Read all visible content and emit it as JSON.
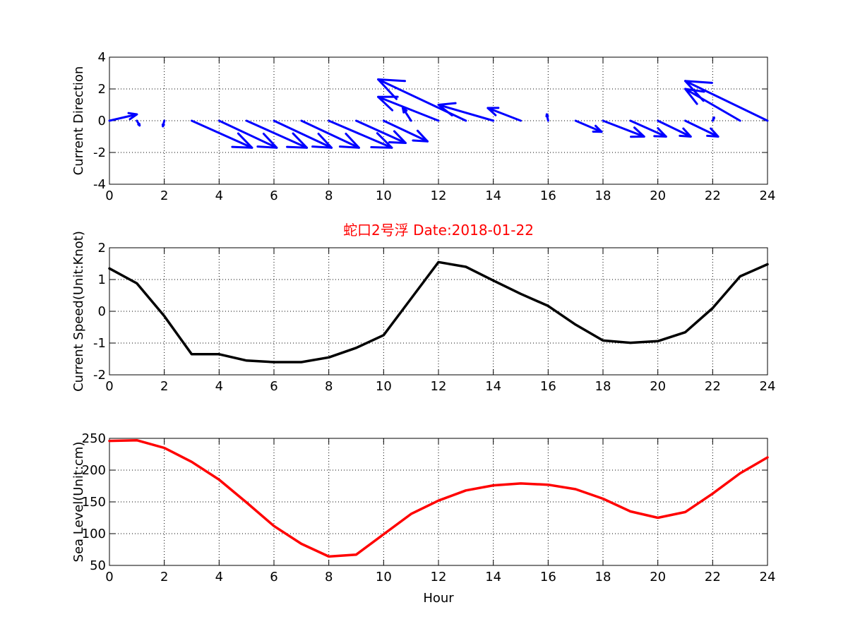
{
  "figure_title": "蛇口2号浮    Date:2018-01-22",
  "colors": {
    "direction": "#0000ff",
    "speed": "#000000",
    "sea_level": "#ff0000",
    "title": "#ff0000"
  },
  "chart_data": [
    {
      "type": "quiver",
      "ylabel": "Current Direction",
      "xlabel": "",
      "xlim": [
        0,
        24
      ],
      "ylim": [
        -4,
        4
      ],
      "xticks": [
        0,
        2,
        4,
        6,
        8,
        10,
        12,
        14,
        16,
        18,
        20,
        22,
        24
      ],
      "yticks": [
        -4,
        -2,
        0,
        2,
        4
      ],
      "grid": true,
      "series": [
        {
          "color": "#0000ff",
          "x": [
            0,
            1,
            2,
            3,
            4,
            5,
            6,
            7,
            8,
            9,
            10,
            11,
            12,
            13,
            14,
            15,
            16,
            17,
            18,
            19,
            20,
            21,
            22,
            23,
            24
          ],
          "u": [
            1.0,
            0.1,
            -0.05,
            2.2,
            2.1,
            2.2,
            2.1,
            2.1,
            2.3,
            1.8,
            1.6,
            -0.3,
            -2.2,
            -3.2,
            -2.0,
            -1.2,
            -0.05,
            0.95,
            1.5,
            1.3,
            1.2,
            1.2,
            0.05,
            -2.0,
            -3.0
          ],
          "v": [
            0.4,
            -0.3,
            -0.35,
            -1.7,
            -1.7,
            -1.7,
            -1.7,
            -1.7,
            -1.7,
            -1.4,
            -1.3,
            0.8,
            1.5,
            2.6,
            1.0,
            0.8,
            0.4,
            -0.7,
            -1.0,
            -1.0,
            -1.0,
            -1.0,
            0.2,
            2.0,
            2.5
          ]
        }
      ]
    },
    {
      "type": "line",
      "ylabel": "Current Speed(Unit:Knot)",
      "xlabel": "",
      "xlim": [
        0,
        24
      ],
      "ylim": [
        -2,
        2
      ],
      "xticks": [
        0,
        2,
        4,
        6,
        8,
        10,
        12,
        14,
        16,
        18,
        20,
        22,
        24
      ],
      "yticks": [
        -2,
        -1,
        0,
        1,
        2
      ],
      "grid": true,
      "series": [
        {
          "color": "#000000",
          "x": [
            0,
            1,
            2,
            3,
            4,
            5,
            6,
            7,
            8,
            9,
            10,
            11,
            12,
            13,
            14,
            15,
            16,
            17,
            18,
            19,
            20,
            21,
            22,
            23,
            24
          ],
          "y": [
            1.35,
            0.88,
            -0.15,
            -1.35,
            -1.35,
            -1.55,
            -1.6,
            -1.6,
            -1.45,
            -1.15,
            -0.75,
            0.4,
            1.55,
            1.4,
            0.97,
            0.55,
            0.17,
            -0.42,
            -0.92,
            -0.99,
            -0.94,
            -0.66,
            0.1,
            1.1,
            1.48
          ]
        }
      ]
    },
    {
      "type": "line",
      "ylabel": "Sea Level(Unit:cm)",
      "xlabel": "Hour",
      "xlim": [
        0,
        24
      ],
      "ylim": [
        50,
        250
      ],
      "xticks": [
        0,
        2,
        4,
        6,
        8,
        10,
        12,
        14,
        16,
        18,
        20,
        22,
        24
      ],
      "yticks": [
        50,
        100,
        150,
        200,
        250
      ],
      "grid": true,
      "series": [
        {
          "color": "#ff0000",
          "x": [
            0,
            1,
            2,
            3,
            4,
            5,
            6,
            7,
            8,
            9,
            10,
            11,
            12,
            13,
            14,
            15,
            16,
            17,
            18,
            19,
            20,
            21,
            22,
            23,
            24
          ],
          "y": [
            246,
            247,
            235,
            213,
            185,
            149,
            112,
            84,
            64,
            67,
            99,
            131,
            152,
            168,
            176,
            179,
            177,
            170,
            155,
            135,
            125,
            134,
            163,
            195,
            220
          ]
        }
      ]
    }
  ]
}
